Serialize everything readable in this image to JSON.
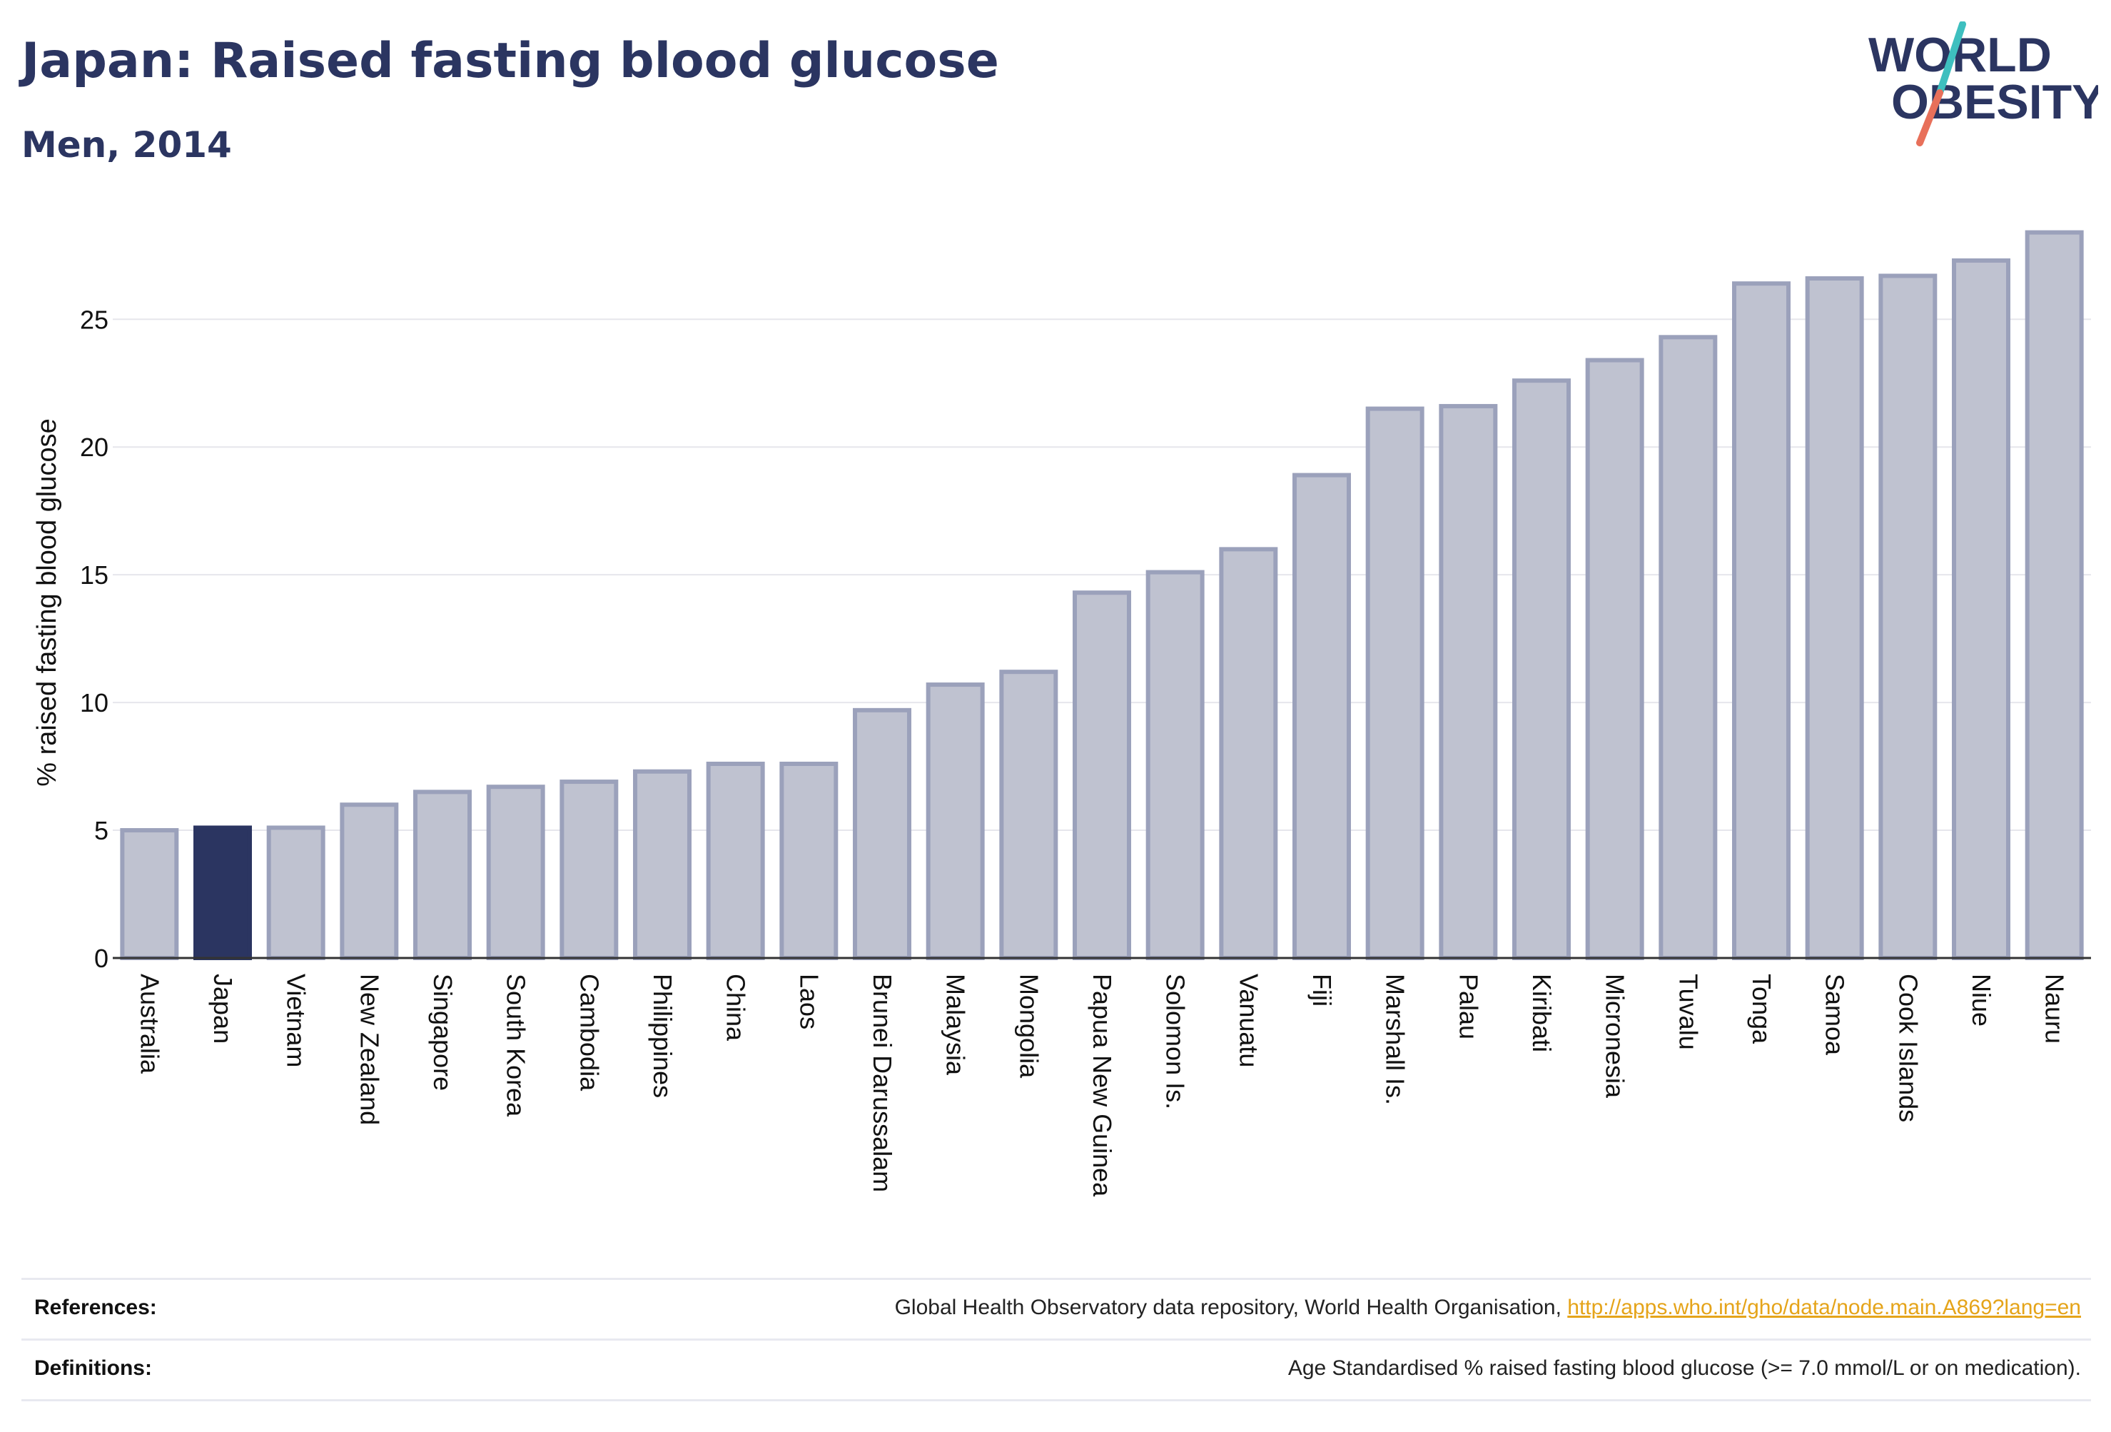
{
  "header": {
    "title": "Japan: Raised fasting blood glucose",
    "subtitle": "Men, 2014"
  },
  "logo": {
    "line1": "WORLD",
    "line2": "OBESITY"
  },
  "colors": {
    "bar_fill": "#bfc2d0",
    "bar_stroke": "#9ba1bb",
    "highlight": "#2b3561",
    "grid": "#e6e6ec",
    "axis_line": "#333333",
    "link": "#e5a41a",
    "logo_navy": "#2b3561",
    "logo_teal": "#3ebfbf",
    "logo_coral": "#e8705a"
  },
  "chart_data": {
    "type": "bar",
    "ylabel": "% raised fasting blood glucose",
    "ylim": [
      0,
      28.5
    ],
    "yticks": [
      0,
      5,
      10,
      15,
      20,
      25
    ],
    "grid": true,
    "highlight": "Japan",
    "categories": [
      "Australia",
      "Japan",
      "Vietnam",
      "New Zealand",
      "Singapore",
      "South Korea",
      "Cambodia",
      "Philippines",
      "China",
      "Laos",
      "Brunei Darussalam",
      "Malaysia",
      "Mongolia",
      "Papua New Guinea",
      "Solomon Is.",
      "Vanuatu",
      "Fiji",
      "Marshall Is.",
      "Palau",
      "Kiribati",
      "Micronesia",
      "Tuvalu",
      "Tonga",
      "Samoa",
      "Cook Islands",
      "Niue",
      "Nauru"
    ],
    "values": [
      5.0,
      5.1,
      5.1,
      6.0,
      6.5,
      6.7,
      6.9,
      7.3,
      7.6,
      7.6,
      9.7,
      10.7,
      11.2,
      14.3,
      15.1,
      16.0,
      18.9,
      21.5,
      21.6,
      22.6,
      23.4,
      24.3,
      26.4,
      26.6,
      26.7,
      27.3,
      28.4
    ]
  },
  "footer": {
    "references_label": "References:",
    "references_text": "Global Health Observatory data repository, World Health Organisation, ",
    "references_link": "http://apps.who.int/gho/data/node.main.A869?lang=en",
    "definitions_label": "Definitions:",
    "definitions_text": "Age Standardised % raised fasting blood glucose (>= 7.0 mmol/L or on medication)."
  }
}
